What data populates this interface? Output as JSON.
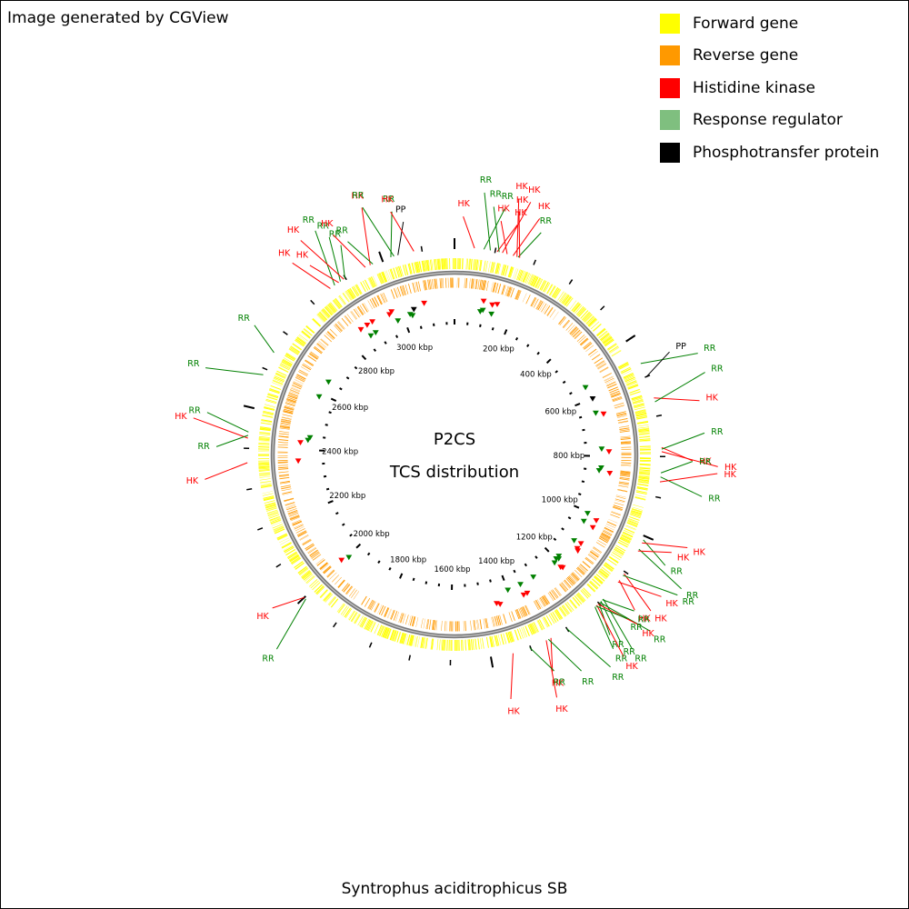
{
  "header": {
    "credit": "Image generated by CGView"
  },
  "legend": [
    {
      "label": "Forward gene",
      "color": "#FFFF00"
    },
    {
      "label": "Reverse gene",
      "color": "#FF9900"
    },
    {
      "label": "Histidine kinase",
      "color": "#FF0000"
    },
    {
      "label": "Response regulator",
      "color": "#7FBF7F"
    },
    {
      "label": "Phosphotransfer protein",
      "color": "#000000"
    }
  ],
  "map": {
    "title_line1": "P2CS",
    "title_line2": "TCS distribution",
    "genome_kbp": 3180,
    "tick_labels": [
      "200 kbp",
      "400 kbp",
      "600 kbp",
      "800 kbp",
      "1000 kbp",
      "1200 kbp",
      "1400 kbp",
      "1600 kbp",
      "1800 kbp",
      "2000 kbp",
      "2200 kbp",
      "2400 kbp",
      "2600 kbp",
      "2800 kbp",
      "3000 kbp"
    ],
    "callouts": [
      {
        "label": "HK",
        "type": "HK",
        "pos_kbp": 49
      },
      {
        "label": "RR",
        "type": "RR",
        "pos_kbp": 72
      },
      {
        "label": "RR",
        "type": "RR",
        "pos_kbp": 88
      },
      {
        "label": "HK",
        "type": "HK",
        "pos_kbp": 105
      },
      {
        "label": "RR",
        "type": "RR",
        "pos_kbp": 110
      },
      {
        "label": "HK",
        "type": "HK",
        "pos_kbp": 118
      },
      {
        "label": "HK",
        "type": "HK",
        "pos_kbp": 130
      },
      {
        "label": "HK",
        "type": "HK",
        "pos_kbp": 145
      },
      {
        "label": "HK",
        "type": "HK",
        "pos_kbp": 155
      },
      {
        "label": "RR",
        "type": "RR",
        "pos_kbp": 158
      },
      {
        "label": "HK",
        "type": "HK",
        "pos_kbp": 162
      },
      {
        "label": "RR",
        "type": "RR",
        "pos_kbp": 565
      },
      {
        "label": "PP",
        "type": "PP",
        "pos_kbp": 600
      },
      {
        "label": "HK",
        "type": "HK",
        "pos_kbp": 655
      },
      {
        "label": "RR",
        "type": "RR",
        "pos_kbp": 665
      },
      {
        "label": "HK",
        "type": "HK",
        "pos_kbp": 778
      },
      {
        "label": "RR",
        "type": "RR",
        "pos_kbp": 782
      },
      {
        "label": "HK",
        "type": "HK",
        "pos_kbp": 788
      },
      {
        "label": "RR",
        "type": "RR",
        "pos_kbp": 840
      },
      {
        "label": "RR",
        "type": "RR",
        "pos_kbp": 850
      },
      {
        "label": "HK",
        "type": "HK",
        "pos_kbp": 862
      },
      {
        "label": "RR",
        "type": "RR",
        "pos_kbp": 1010
      },
      {
        "label": "HK",
        "type": "HK",
        "pos_kbp": 1018
      },
      {
        "label": "RR",
        "type": "RR",
        "pos_kbp": 1035
      },
      {
        "label": "HK",
        "type": "HK",
        "pos_kbp": 1040
      },
      {
        "label": "HK",
        "type": "HK",
        "pos_kbp": 1105
      },
      {
        "label": "RR",
        "type": "RR",
        "pos_kbp": 1110
      },
      {
        "label": "HK",
        "type": "HK",
        "pos_kbp": 1125
      },
      {
        "label": "HK",
        "type": "HK",
        "pos_kbp": 1130
      },
      {
        "label": "RR",
        "type": "RR",
        "pos_kbp": 1185
      },
      {
        "label": "RR",
        "type": "RR",
        "pos_kbp": 1188
      },
      {
        "label": "RR",
        "type": "RR",
        "pos_kbp": 1193
      },
      {
        "label": "RR",
        "type": "RR",
        "pos_kbp": 1197
      },
      {
        "label": "RR",
        "type": "RR",
        "pos_kbp": 1200
      },
      {
        "label": "HK",
        "type": "HK",
        "pos_kbp": 1203
      },
      {
        "label": "HK",
        "type": "HK",
        "pos_kbp": 1207
      },
      {
        "label": "RR",
        "type": "RR",
        "pos_kbp": 1210
      },
      {
        "label": "RR",
        "type": "RR",
        "pos_kbp": 1213
      },
      {
        "label": "RR",
        "type": "RR",
        "pos_kbp": 1300
      },
      {
        "label": "HK",
        "type": "HK",
        "pos_kbp": 1345
      },
      {
        "label": "RR",
        "type": "RR",
        "pos_kbp": 1352
      },
      {
        "label": "HK",
        "type": "HK",
        "pos_kbp": 1358
      },
      {
        "label": "RR",
        "type": "RR",
        "pos_kbp": 1402
      },
      {
        "label": "HK",
        "type": "HK",
        "pos_kbp": 1445
      },
      {
        "label": "RR",
        "type": "RR",
        "pos_kbp": 1995
      },
      {
        "label": "HK",
        "type": "HK",
        "pos_kbp": 2000
      },
      {
        "label": "HK",
        "type": "HK",
        "pos_kbp": 2365
      },
      {
        "label": "HK",
        "type": "HK",
        "pos_kbp": 2425
      },
      {
        "label": "RR",
        "type": "RR",
        "pos_kbp": 2432
      },
      {
        "label": "RR",
        "type": "RR",
        "pos_kbp": 2440
      },
      {
        "label": "RR",
        "type": "RR",
        "pos_kbp": 2585
      },
      {
        "label": "RR",
        "type": "RR",
        "pos_kbp": 2645
      },
      {
        "label": "HK",
        "type": "HK",
        "pos_kbp": 2855
      },
      {
        "label": "RR",
        "type": "RR",
        "pos_kbp": 2868
      },
      {
        "label": "HK",
        "type": "HK",
        "pos_kbp": 2880
      },
      {
        "label": "RR",
        "type": "RR",
        "pos_kbp": 2885
      },
      {
        "label": "HK",
        "type": "HK",
        "pos_kbp": 2895
      },
      {
        "label": "RR",
        "type": "RR",
        "pos_kbp": 2898
      },
      {
        "label": "HK",
        "type": "HK",
        "pos_kbp": 2955
      },
      {
        "label": "HK",
        "type": "HK",
        "pos_kbp": 2968
      },
      {
        "label": "RR",
        "type": "RR",
        "pos_kbp": 2975
      },
      {
        "label": "RR",
        "type": "RR",
        "pos_kbp": 3022
      },
      {
        "label": "RR",
        "type": "RR",
        "pos_kbp": 3030
      },
      {
        "label": "PP",
        "type": "PP",
        "pos_kbp": 3040
      },
      {
        "label": "HK",
        "type": "HK",
        "pos_kbp": 3080
      }
    ],
    "tcs_markers": [
      {
        "type": "HK",
        "pos_kbp": 95
      },
      {
        "type": "RR",
        "pos_kbp": 90
      },
      {
        "type": "RR",
        "pos_kbp": 98
      },
      {
        "type": "HK",
        "pos_kbp": 125
      },
      {
        "type": "HK",
        "pos_kbp": 140
      },
      {
        "type": "RR",
        "pos_kbp": 130
      },
      {
        "type": "RR",
        "pos_kbp": 555
      },
      {
        "type": "PP",
        "pos_kbp": 600
      },
      {
        "type": "RR",
        "pos_kbp": 650
      },
      {
        "type": "HK",
        "pos_kbp": 660
      },
      {
        "type": "RR",
        "pos_kbp": 775
      },
      {
        "type": "HK",
        "pos_kbp": 785
      },
      {
        "type": "RR",
        "pos_kbp": 840
      },
      {
        "type": "RR",
        "pos_kbp": 850
      },
      {
        "type": "HK",
        "pos_kbp": 855
      },
      {
        "type": "RR",
        "pos_kbp": 1005
      },
      {
        "type": "HK",
        "pos_kbp": 1015
      },
      {
        "type": "RR",
        "pos_kbp": 1035
      },
      {
        "type": "HK",
        "pos_kbp": 1040
      },
      {
        "type": "HK",
        "pos_kbp": 1105
      },
      {
        "type": "RR",
        "pos_kbp": 1110
      },
      {
        "type": "HK",
        "pos_kbp": 1125
      },
      {
        "type": "HK",
        "pos_kbp": 1130
      },
      {
        "type": "RR",
        "pos_kbp": 1185
      },
      {
        "type": "RR",
        "pos_kbp": 1192
      },
      {
        "type": "RR",
        "pos_kbp": 1198
      },
      {
        "type": "HK",
        "pos_kbp": 1203
      },
      {
        "type": "HK",
        "pos_kbp": 1207
      },
      {
        "type": "RR",
        "pos_kbp": 1212
      },
      {
        "type": "RR",
        "pos_kbp": 1300
      },
      {
        "type": "HK",
        "pos_kbp": 1345
      },
      {
        "type": "RR",
        "pos_kbp": 1352
      },
      {
        "type": "HK",
        "pos_kbp": 1358
      },
      {
        "type": "RR",
        "pos_kbp": 1400
      },
      {
        "type": "HK",
        "pos_kbp": 1440
      },
      {
        "type": "HK",
        "pos_kbp": 1450
      },
      {
        "type": "RR",
        "pos_kbp": 1995
      },
      {
        "type": "HK",
        "pos_kbp": 2005
      },
      {
        "type": "HK",
        "pos_kbp": 2365
      },
      {
        "type": "HK",
        "pos_kbp": 2425
      },
      {
        "type": "RR",
        "pos_kbp": 2435
      },
      {
        "type": "RR",
        "pos_kbp": 2445
      },
      {
        "type": "RR",
        "pos_kbp": 2590
      },
      {
        "type": "RR",
        "pos_kbp": 2650
      },
      {
        "type": "HK",
        "pos_kbp": 2855
      },
      {
        "type": "RR",
        "pos_kbp": 2870
      },
      {
        "type": "HK",
        "pos_kbp": 2880
      },
      {
        "type": "RR",
        "pos_kbp": 2890
      },
      {
        "type": "HK",
        "pos_kbp": 2900
      },
      {
        "type": "HK",
        "pos_kbp": 2960
      },
      {
        "type": "HK",
        "pos_kbp": 2970
      },
      {
        "type": "RR",
        "pos_kbp": 2978
      },
      {
        "type": "RR",
        "pos_kbp": 3025
      },
      {
        "type": "RR",
        "pos_kbp": 3032
      },
      {
        "type": "PP",
        "pos_kbp": 3042
      },
      {
        "type": "HK",
        "pos_kbp": 3080
      }
    ],
    "type_colors": {
      "HK": "#FF0000",
      "RR": "#008000",
      "PP": "#000000"
    }
  },
  "footer": {
    "organism": "Syntrophus aciditrophicus SB"
  }
}
